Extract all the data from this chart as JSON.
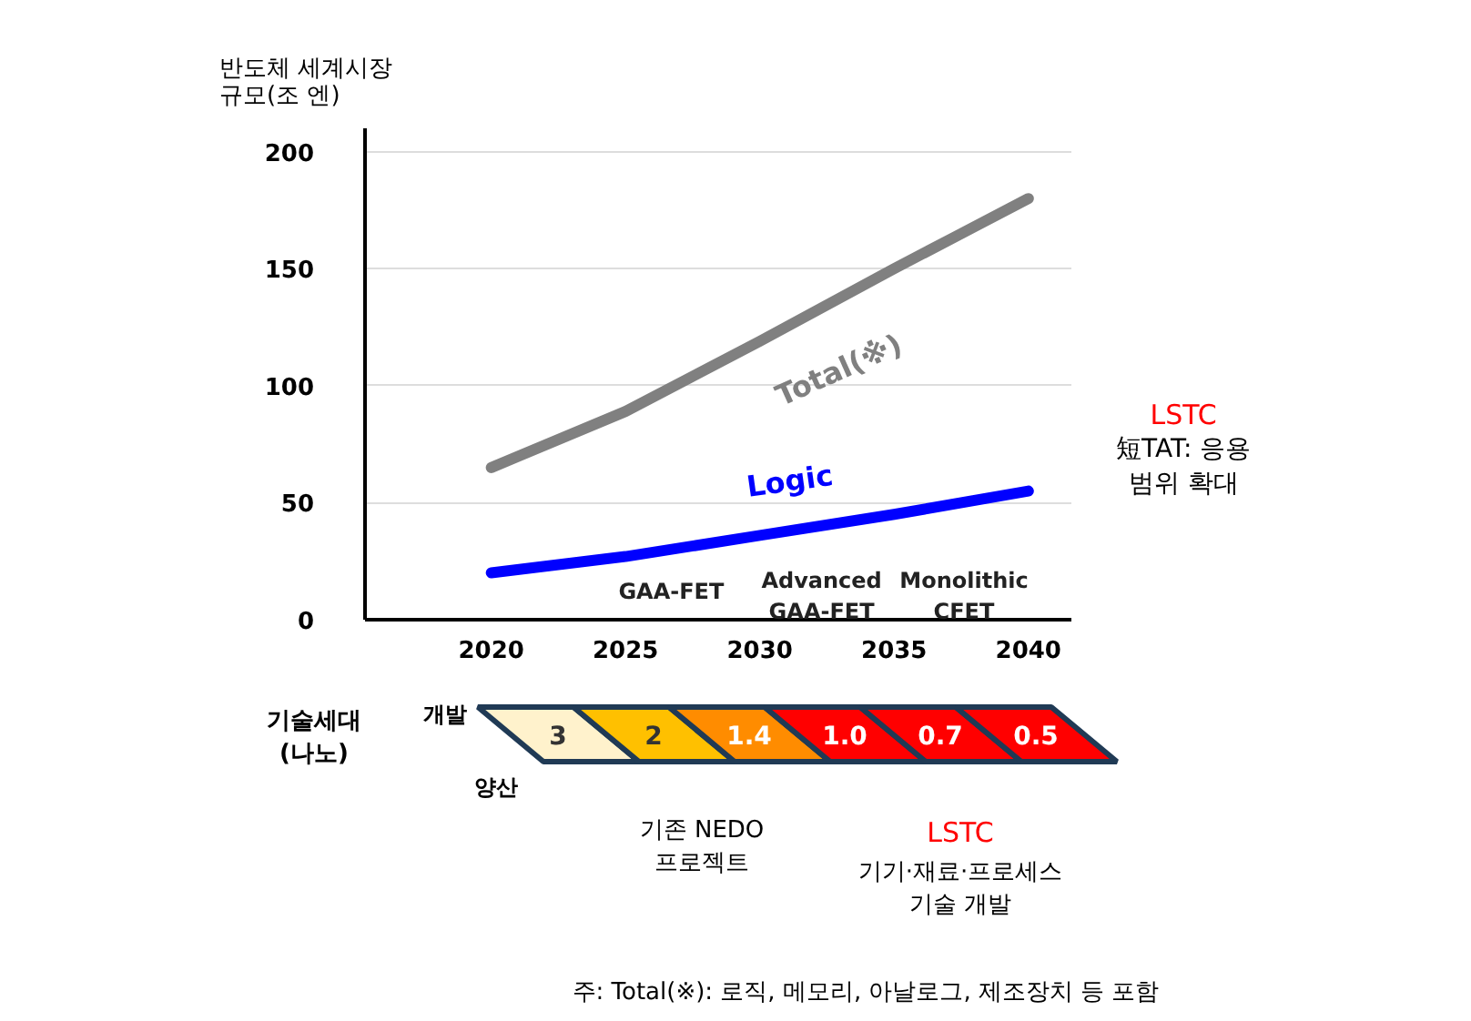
{
  "chart_data": {
    "type": "line",
    "ylabel": "반도체 세계시장\n규모(조 엔)",
    "x": [
      2020,
      2025,
      2030,
      2035,
      2040
    ],
    "series": [
      {
        "name": "Total(※)",
        "color": "#808080",
        "values": [
          65,
          89,
          119,
          150,
          180
        ]
      },
      {
        "name": "Logic",
        "color": "#0000ff",
        "values": [
          20,
          27,
          36,
          45,
          55
        ]
      }
    ],
    "xlim": [
      2015.3,
      2041.6
    ],
    "ylim": [
      0,
      210
    ],
    "xticks": [
      2020,
      2025,
      2030,
      2035,
      2040
    ],
    "yticks": [
      0,
      50,
      100,
      150,
      200
    ],
    "grid": "y",
    "marker": "none",
    "line_style": "solid",
    "annotations": [
      "GAA-FET",
      "Advanced\nGAA-FET",
      "Monolithic\nCFET",
      "LSTC",
      "短TAT: 응용\n범위 확대",
      "기술세대\n(나노)",
      "개발",
      "양산",
      "3",
      "2",
      "1.4",
      "1.0",
      "0.7",
      "0.5",
      "기존 NEDO\n프로젝트",
      "LSTC",
      "기기·재료·프로세스\n기술 개발",
      "주: Total(※): 로직, 메모리, 아날로그, 제조장치 등 포함"
    ]
  }
}
